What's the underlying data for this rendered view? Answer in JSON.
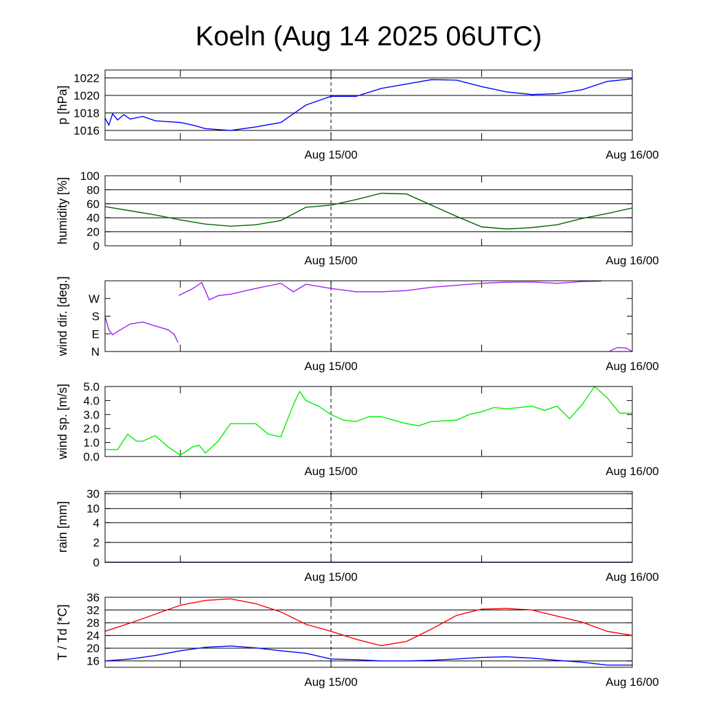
{
  "title": "Koeln (Aug 14 2025 06UTC)",
  "chart_data": [
    {
      "type": "line",
      "ylabel": "p [hPa]",
      "ylim": [
        1014.9,
        1022.9
      ],
      "yticks": [
        1016,
        1018,
        1020,
        1022
      ],
      "ytick_labels": [
        "1016",
        "1018",
        "1020",
        "1022"
      ],
      "grid": true,
      "x_start": "Aug 14 06UTC",
      "x_hours": [
        0,
        2,
        4,
        6,
        8,
        10,
        12,
        14,
        16,
        18,
        20,
        22,
        24,
        26,
        28,
        30,
        32,
        34,
        36,
        38,
        40,
        42
      ],
      "xtick_labels": [
        "Aug 15/00",
        "Aug 16/00"
      ],
      "series": [
        {
          "name": "pressure",
          "color": "#0000ff",
          "x": [
            0,
            0.3,
            0.6,
            1,
            1.5,
            2,
            3,
            4,
            5,
            6,
            7,
            8,
            10,
            12,
            14,
            16,
            18,
            20,
            22,
            24,
            26,
            28,
            30,
            32,
            34,
            36,
            38,
            40,
            42
          ],
          "values": [
            1017.4,
            1016.6,
            1017.9,
            1017.2,
            1017.8,
            1017.3,
            1017.6,
            1017.1,
            1017.0,
            1016.9,
            1016.6,
            1016.2,
            1016.0,
            1016.4,
            1016.9,
            1018.9,
            1019.9,
            1019.9,
            1020.8,
            1021.3,
            1021.8,
            1021.75,
            1021.0,
            1020.4,
            1020.1,
            1020.2,
            1020.65,
            1021.6,
            1021.9
          ]
        }
      ]
    },
    {
      "type": "line",
      "ylabel": "humidity [%]",
      "ylim": [
        0,
        100
      ],
      "yticks": [
        0,
        20,
        40,
        60,
        80,
        100
      ],
      "ytick_labels": [
        "0",
        "20",
        "40",
        "60",
        "80",
        "100"
      ],
      "grid": true,
      "xtick_labels": [
        "Aug 15/00",
        "Aug 16/00"
      ],
      "series": [
        {
          "name": "humidity",
          "color": "#006400",
          "x": [
            0,
            2,
            4,
            6,
            8,
            10,
            12,
            14,
            16,
            18,
            20,
            22,
            24,
            26,
            28,
            30,
            32,
            34,
            36,
            38,
            40,
            42
          ],
          "values": [
            56,
            50,
            44,
            37,
            31,
            28,
            30,
            36,
            55,
            58,
            66,
            75,
            74,
            58,
            42,
            27,
            24,
            26,
            30,
            39,
            46,
            54
          ]
        }
      ]
    },
    {
      "type": "scatter",
      "ylabel": "wind dir. [deg.]",
      "ylim": [
        0,
        360
      ],
      "yticks": [
        0,
        90,
        180,
        270
      ],
      "ytick_labels": [
        "N",
        "E",
        "S",
        "W"
      ],
      "grid": false,
      "xtick_labels": [
        "Aug 15/00",
        "Aug 16/00"
      ],
      "series": [
        {
          "name": "wind direction",
          "color": "#a020f0",
          "x": [
            0,
            0.3,
            0.6,
            1,
            2,
            3,
            4,
            5,
            5.5,
            5.8,
            5.9,
            7,
            7.7,
            8.3,
            9,
            10,
            12,
            14,
            15,
            16,
            18,
            20,
            22,
            24,
            26,
            28,
            30,
            32,
            34,
            36,
            38,
            39.5,
            40.2,
            40.8,
            41.5,
            42
          ],
          "values": [
            179,
            111,
            85,
            102,
            140,
            150,
            130,
            111,
            88,
            47,
            286,
            321,
            351,
            263,
            284,
            292,
            321,
            347,
            304,
            342,
            321,
            304,
            304,
            310,
            327,
            337,
            347,
            353,
            354,
            347,
            356,
            358,
            2,
            20,
            18,
            0
          ]
        }
      ]
    },
    {
      "type": "line",
      "ylabel": "wind sp. [m/s]",
      "ylim": [
        0,
        5
      ],
      "yticks": [
        0,
        1,
        2,
        3,
        4,
        5
      ],
      "ytick_labels": [
        "0.0",
        "1.0",
        "2.0",
        "3.0",
        "4.0",
        "5.0"
      ],
      "grid": false,
      "xtick_labels": [
        "Aug 15/00",
        "Aug 16/00"
      ],
      "series": [
        {
          "name": "wind speed",
          "color": "#00ee00",
          "x": [
            0,
            1,
            1.8,
            2.5,
            3,
            4,
            5,
            6,
            7,
            7.5,
            8,
            9,
            10,
            12,
            13,
            14,
            15,
            15.5,
            16,
            17,
            18,
            19,
            20,
            21,
            22,
            24,
            25,
            26,
            28,
            29,
            30,
            31,
            32,
            34,
            35,
            36,
            37,
            38,
            39,
            40,
            41,
            42
          ],
          "values": [
            0.5,
            0.5,
            1.6,
            1.1,
            1.1,
            1.5,
            0.7,
            0.1,
            0.7,
            0.8,
            0.25,
            1.1,
            2.35,
            2.35,
            1.6,
            1.4,
            3.7,
            4.65,
            4.0,
            3.6,
            3.0,
            2.6,
            2.5,
            2.85,
            2.85,
            2.35,
            2.2,
            2.5,
            2.6,
            3.0,
            3.2,
            3.5,
            3.4,
            3.6,
            3.3,
            3.6,
            2.7,
            3.7,
            5.0,
            4.2,
            3.1,
            3.1
          ]
        }
      ]
    },
    {
      "type": "line",
      "ylabel": "rain [mm]",
      "ylim": [
        0,
        30
      ],
      "yticks": [
        0,
        2,
        4,
        10,
        30
      ],
      "ytick_labels": [
        "0",
        "2",
        "4",
        "10",
        "30"
      ],
      "grid": true,
      "xtick_labels": [
        "Aug 15/00",
        "Aug 16/00"
      ],
      "series": [
        {
          "name": "rain",
          "color": "#00008b",
          "x": [
            0,
            42
          ],
          "values": [
            0,
            0
          ]
        }
      ]
    },
    {
      "type": "line",
      "ylabel": "T / Td [*C]",
      "ylim": [
        14,
        36
      ],
      "yticks": [
        16,
        20,
        24,
        28,
        32,
        36
      ],
      "ytick_labels": [
        "16",
        "20",
        "24",
        "28",
        "32",
        "36"
      ],
      "grid": true,
      "xtick_labels": [
        "Aug 15/00",
        "Aug 16/00"
      ],
      "series": [
        {
          "name": "temperature",
          "color": "#ff0000",
          "x": [
            0,
            2,
            4,
            6,
            8,
            10,
            12,
            14,
            16,
            18,
            20,
            22,
            24,
            26,
            28,
            30,
            32,
            34,
            36,
            38,
            40,
            42
          ],
          "values": [
            25.3,
            27.9,
            30.7,
            33.5,
            35.0,
            35.5,
            34.0,
            31.4,
            27.5,
            25.3,
            22.8,
            20.8,
            22.1,
            26.0,
            30.3,
            32.3,
            32.5,
            32.0,
            30.1,
            28.2,
            25.3,
            24.0
          ]
        },
        {
          "name": "dew point",
          "color": "#0000ff",
          "x": [
            0,
            2,
            4,
            6,
            8,
            10,
            12,
            14,
            16,
            18,
            20,
            22,
            24,
            26,
            28,
            30,
            32,
            34,
            36,
            38,
            40,
            42
          ],
          "values": [
            16.0,
            16.6,
            17.7,
            19.2,
            20.3,
            20.7,
            20.1,
            19.2,
            18.4,
            16.6,
            16.4,
            16.0,
            16.0,
            16.2,
            16.6,
            17.1,
            17.3,
            16.9,
            16.2,
            15.6,
            14.7,
            14.7
          ]
        }
      ]
    }
  ]
}
